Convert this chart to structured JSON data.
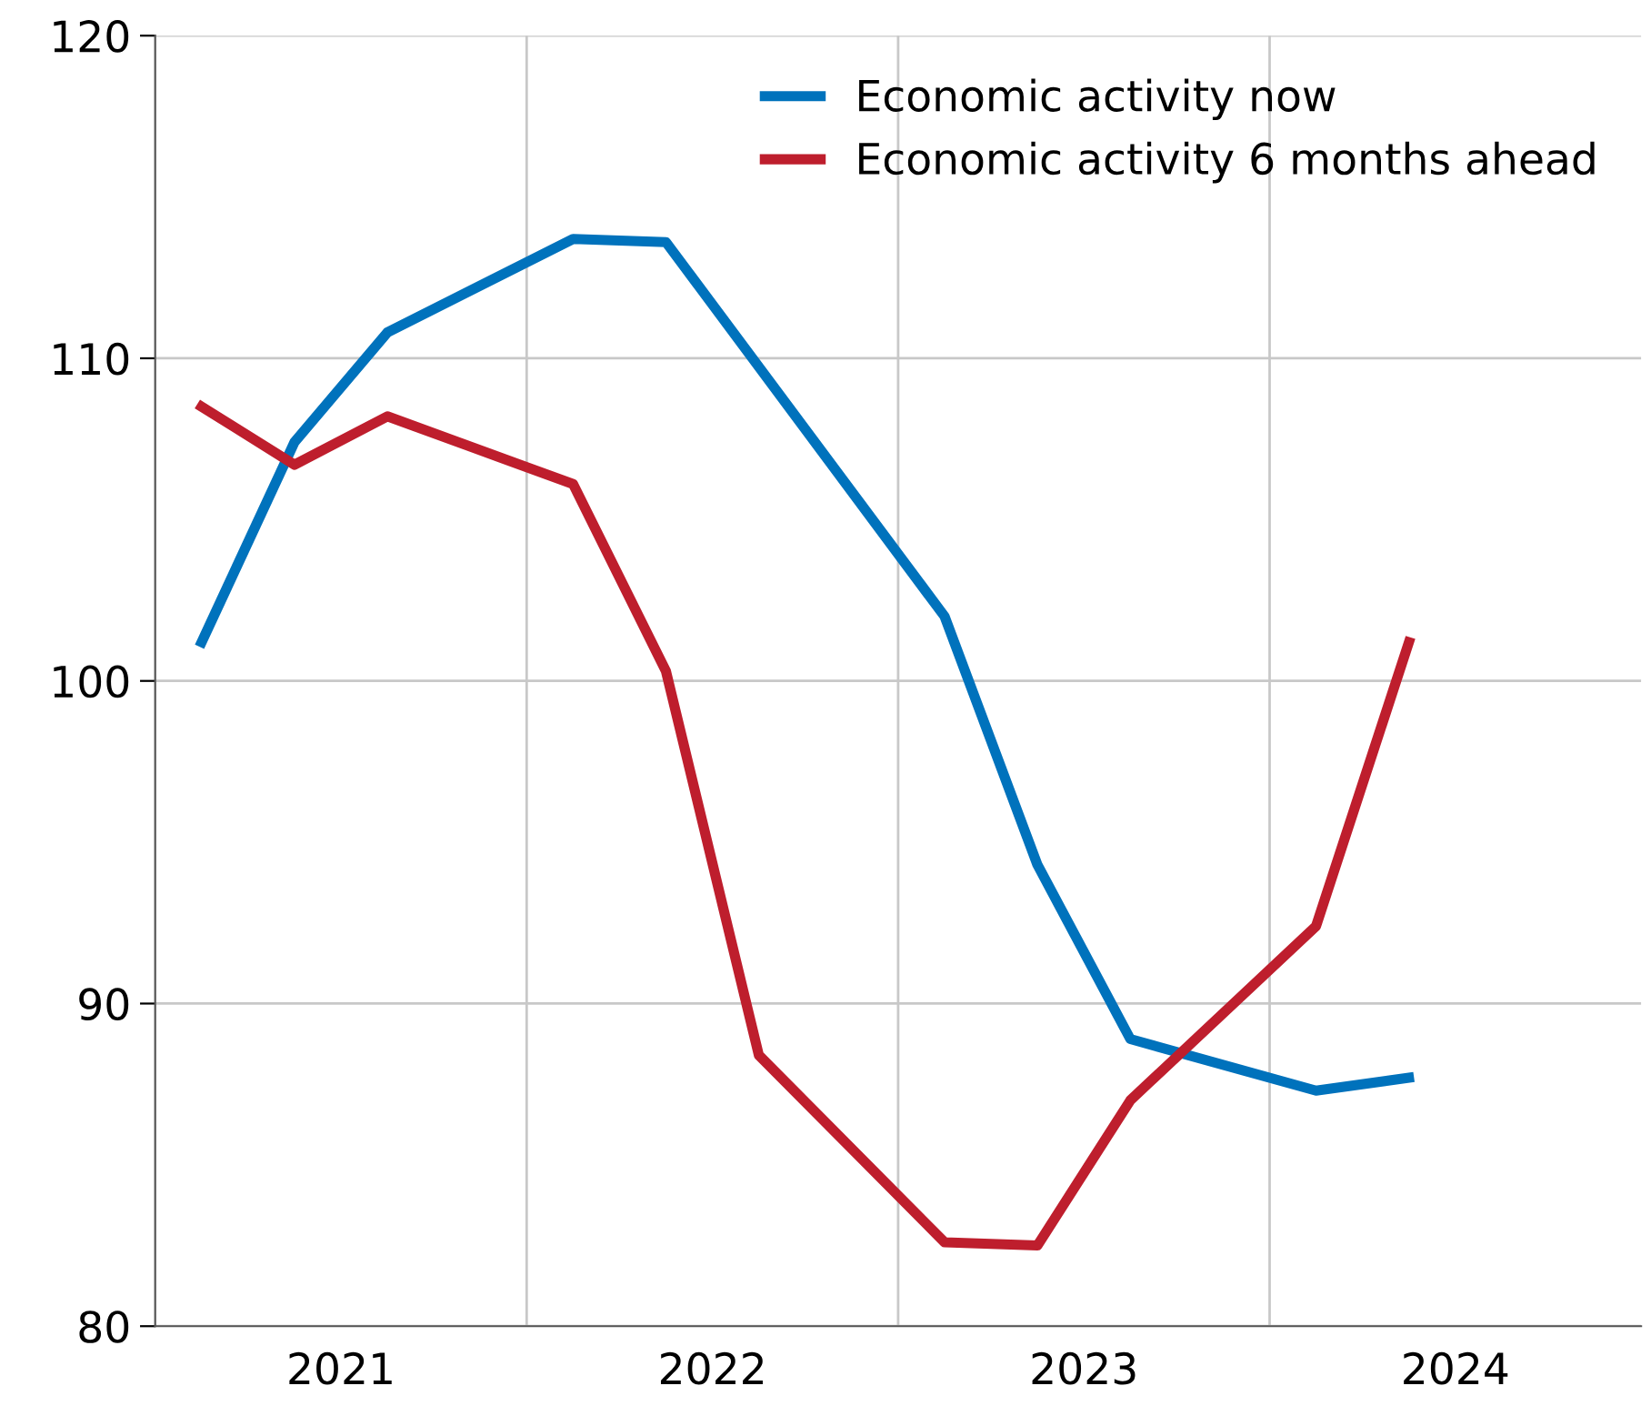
{
  "chart_data": {
    "type": "line",
    "series": [
      {
        "name": "Economic activity now",
        "color": "#0072bc",
        "x": [
          2021.125,
          2021.375,
          2021.625,
          2022.125,
          2022.375,
          2023.125,
          2023.375,
          2023.625,
          2024.125,
          2024.375
        ],
        "values": [
          101.2,
          107.4,
          110.8,
          113.7,
          113.6,
          102.0,
          94.3,
          88.9,
          87.3,
          87.7
        ]
      },
      {
        "name": "Economic activity 6 months ahead",
        "color": "#be1e2d",
        "x": [
          2021.125,
          2021.375,
          2021.625,
          2022.125,
          2022.375,
          2022.625,
          2023.125,
          2023.375,
          2023.625,
          2024.125,
          2024.375
        ],
        "values": [
          108.5,
          106.7,
          108.2,
          106.1,
          100.3,
          88.4,
          82.6,
          82.5,
          87.0,
          92.4,
          101.2
        ]
      }
    ],
    "xlim": [
      2021,
      2025
    ],
    "xticks": [
      {
        "value": 2021.5,
        "label": "2021"
      },
      {
        "value": 2022,
        "label": null
      },
      {
        "value": 2022.5,
        "label": "2022"
      },
      {
        "value": 2023,
        "label": null
      },
      {
        "value": 2023.5,
        "label": "2023"
      },
      {
        "value": 2024,
        "label": null
      },
      {
        "value": 2024.5,
        "label": "2024"
      }
    ],
    "ylim": [
      80,
      120
    ],
    "yticks": [
      80,
      90,
      100,
      110,
      120
    ],
    "grid": true,
    "legend": "top right",
    "marker": "none",
    "line_style": "solid"
  }
}
